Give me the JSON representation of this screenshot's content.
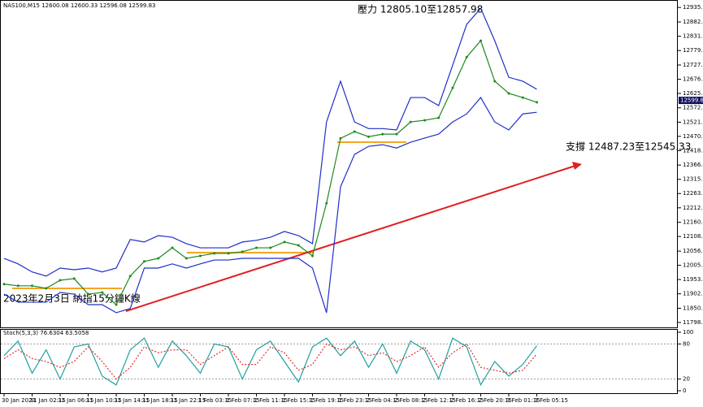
{
  "chart_data": {
    "type": "line",
    "header": "NAS100,M15  12600.08 12600.33 12596.08 12599.83",
    "annotations": [
      "壓力 12805.10至12857.98",
      "支撐 12487.23至12545.33",
      "2023年2月3日 納指15分鐘K線"
    ],
    "current_price": {
      "value": 12599.83,
      "label": "12599.83"
    },
    "categories": [
      "30 Jan 2023",
      null,
      "31 Jan 02:15",
      null,
      "31 Jan 06:15",
      null,
      "31 Jan 10:15",
      null,
      "31 Jan 14:15",
      null,
      "31 Jan 18:15",
      null,
      "31 Jan 22:15",
      null,
      "1 Feb 03:15",
      null,
      "1 Feb 07:15",
      null,
      "1 Feb 11:15",
      null,
      "1 Feb 15:15",
      null,
      "1 Feb 19:15",
      null,
      "1 Feb 23:15",
      null,
      "2 Feb 04:15",
      null,
      "2 Feb 08:15",
      null,
      "2 Feb 12:15",
      null,
      "2 Feb 16:15",
      null,
      "2 Feb 20:15",
      null,
      "3 Feb 01:15",
      null,
      "3 Feb 05:15"
    ],
    "series": [
      {
        "name": "Close",
        "color": "#1e8a1e",
        "values": [
          11937,
          11931,
          11931,
          11922,
          11951,
          11957,
          11901,
          11907,
          11863,
          11966,
          12019,
          12030,
          12068,
          12030,
          12039,
          12048,
          12048,
          12054,
          12068,
          12068,
          12089,
          12077,
          12039,
          12229,
          12463,
          12487,
          12469,
          12478,
          12478,
          12522,
          12528,
          12537,
          12645,
          12756,
          12815,
          12669,
          12625,
          12610,
          12593
        ]
      },
      {
        "name": "Upper Band",
        "color": "#1f2fc8",
        "values": [
          12030,
          12010,
          11981,
          11966,
          11995,
          11989,
          11995,
          11981,
          11995,
          12098,
          12089,
          12112,
          12106,
          12083,
          12068,
          12068,
          12068,
          12089,
          12095,
          12106,
          12127,
          12112,
          12083,
          12522,
          12669,
          12522,
          12498,
          12498,
          12493,
          12610,
          12610,
          12581,
          12727,
          12874,
          12932,
          12815,
          12683,
          12669,
          12640
        ]
      },
      {
        "name": "Lower Band",
        "color": "#1f2fc8",
        "values": [
          11901,
          11872,
          11872,
          11872,
          11907,
          11901,
          11863,
          11863,
          11834,
          11849,
          11995,
          11995,
          12010,
          11995,
          12010,
          12024,
          12024,
          12030,
          12030,
          12030,
          12030,
          12030,
          11995,
          11834,
          12288,
          12405,
          12434,
          12440,
          12428,
          12449,
          12464,
          12478,
          12522,
          12551,
          12610,
          12522,
          12493,
          12551,
          12557
        ]
      }
    ],
    "ylim": [
      11781,
      12956
    ],
    "yticks": [
      12935.05,
      {
        "value": 12882.7,
        "label": "12882.70"
      },
      12831.15,
      {
        "value": 12779.6,
        "label": "12779.60"
      },
      12727.45,
      {
        "value": 12676.1,
        "label": "12676.10"
      },
      {
        "value": 12625,
        "label": "12625.00"
      },
      {
        "value": 12572.9,
        "label": "12572.90"
      },
      12521.15,
      {
        "value": 12470,
        "label": "12470.00"
      },
      12418.55,
      12366.45,
      {
        "value": 12315.1,
        "label": "12315.10"
      },
      12263.85,
      {
        "value": 12212.3,
        "label": "12212.30"
      },
      {
        "value": 12160,
        "label": "12160.00"
      },
      12108.85,
      12056.15,
      {
        "value": 12005,
        "label": "12005.00"
      },
      11953.65,
      11902.15,
      {
        "value": 11850,
        "label": "11850.00"
      },
      11798.85
    ],
    "stochastic": {
      "title": "Stoch(5,3,3) 76.6304 63.5058",
      "ylim": [
        0,
        100
      ],
      "yticks": [
        100,
        80,
        20,
        0
      ],
      "series": [
        {
          "name": "%K",
          "color": "#20a0a0",
          "values": [
            60,
            85,
            30,
            70,
            20,
            75,
            80,
            25,
            10,
            70,
            90,
            40,
            85,
            60,
            30,
            80,
            75,
            20,
            70,
            85,
            50,
            15,
            75,
            90,
            60,
            85,
            40,
            80,
            30,
            85,
            70,
            20,
            90,
            75,
            10,
            50,
            25,
            45,
            77
          ]
        },
        {
          "name": "%D",
          "color": "#e03030",
          "values": [
            55,
            70,
            55,
            50,
            40,
            50,
            75,
            50,
            20,
            40,
            75,
            65,
            70,
            70,
            45,
            60,
            75,
            45,
            45,
            75,
            65,
            35,
            45,
            80,
            70,
            75,
            60,
            65,
            50,
            60,
            75,
            40,
            65,
            80,
            40,
            35,
            30,
            35,
            63
          ]
        }
      ]
    }
  }
}
